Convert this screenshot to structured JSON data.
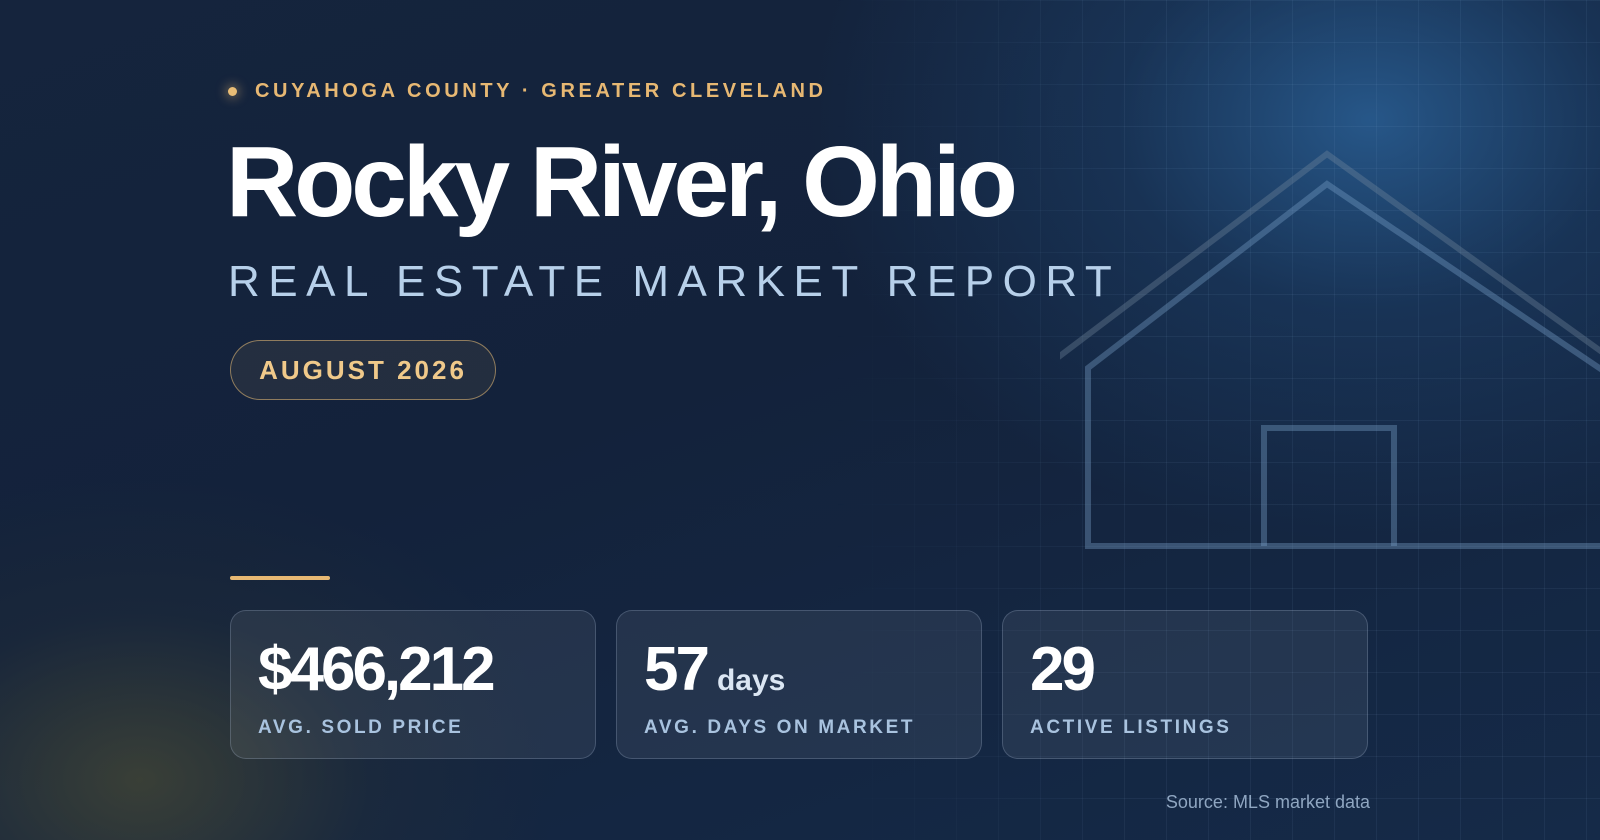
{
  "header": {
    "eyebrow": "CUYAHOGA COUNTY · GREATER CLEVELAND",
    "title": "Rocky River, Ohio",
    "subtitle": "REAL ESTATE MARKET REPORT",
    "date_badge": "AUGUST 2026"
  },
  "stats": [
    {
      "value": "$466,212",
      "unit": "",
      "label": "AVG. SOLD PRICE"
    },
    {
      "value": "57",
      "unit": "days",
      "label": "AVG. DAYS ON MARKET"
    },
    {
      "value": "29",
      "unit": "",
      "label": "ACTIVE LISTINGS"
    }
  ],
  "footer": {
    "source": "Source: MLS market data"
  },
  "colors": {
    "accent_gold": "#e7b873",
    "background_navy": "#14233c",
    "subtitle_blue": "#b7d0ea"
  },
  "icons": {
    "house_outline": "house-outline-icon",
    "eyebrow_dot": "dot-icon"
  }
}
